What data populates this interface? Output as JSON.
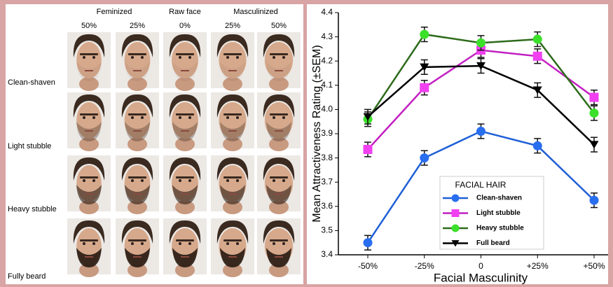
{
  "faces_panel": {
    "column_groups": [
      "Feminized",
      "Raw face",
      "Masculinized"
    ],
    "columns": [
      "50%",
      "25%",
      "0%",
      "25%",
      "50%"
    ],
    "rows": [
      "Clean-shaven",
      "Light stubble",
      "Heavy stubble",
      "Fully beard"
    ]
  },
  "chart_data": {
    "type": "line",
    "x_label": "Facial Masculinity",
    "y_label": "Mean Attractiveness Rating (±SEM)",
    "categories": [
      "-50%",
      "-25%",
      "0",
      "+25%",
      "+50%"
    ],
    "ylim": [
      3.4,
      4.4
    ],
    "yticks": [
      3.4,
      3.5,
      3.6,
      3.7,
      3.8,
      3.9,
      {
        "value": 4,
        "label": "4.0"
      },
      4.1,
      4.2,
      4.3,
      4.4
    ],
    "legend_title": "FACIAL HAIR",
    "legend": "lower center",
    "series": [
      {
        "name": "Clean-shaven",
        "color": "#1f5fd6",
        "marker_color": "#2a6ef0",
        "marker": "circle",
        "values": [
          3.45,
          3.8,
          3.91,
          3.85,
          3.625
        ],
        "errors": [
          0.03,
          0.03,
          0.03,
          0.03,
          0.03
        ]
      },
      {
        "name": "Light stubble",
        "color": "#c21fc2",
        "marker_color": "#f040f0",
        "marker": "square",
        "values": [
          3.835,
          4.09,
          4.245,
          4.22,
          4.05
        ],
        "errors": [
          0.03,
          0.03,
          0.03,
          0.03,
          0.03
        ]
      },
      {
        "name": "Heavy stubble",
        "color": "#2e6b1c",
        "marker_color": "#3be02a",
        "marker": "circle",
        "values": [
          3.96,
          4.31,
          4.275,
          4.29,
          3.985
        ],
        "errors": [
          0.03,
          0.03,
          0.03,
          0.03,
          0.03
        ]
      },
      {
        "name": "Full beard",
        "color": "#000000",
        "marker_color": "#000000",
        "marker": "triangle-down",
        "values": [
          3.97,
          4.175,
          4.18,
          4.08,
          3.855
        ],
        "errors": [
          0.03,
          0.03,
          0.03,
          0.03,
          0.03
        ]
      }
    ]
  }
}
